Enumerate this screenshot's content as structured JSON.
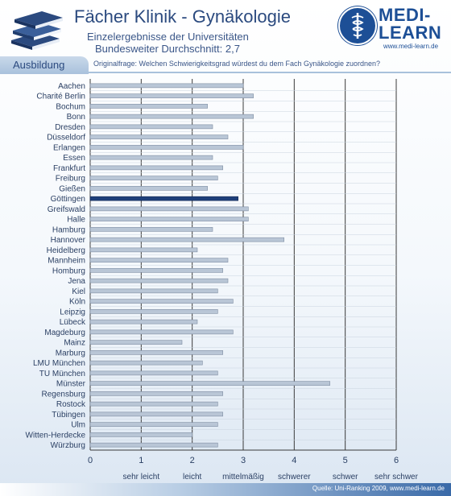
{
  "header": {
    "title": "Fächer Klinik - Gynäkologie",
    "subtitle": "Einzelergebnisse der Universitäten",
    "average": "Bundesweiter Durchschnitt: 2,7"
  },
  "logo": {
    "line1": "MEDI-",
    "line2": "LEARN",
    "url": "www.medi-learn.de",
    "icon": "caduceus-icon"
  },
  "tab": {
    "label": "Ausbildung"
  },
  "question": "Originalfrage: Welchen Schwierigkeitsgrad würdest du dem Fach Gynäkologie zuordnen?",
  "footer": {
    "source": "Quelle: Uni-Ranking 2009, www.medi-learn.de"
  },
  "colors": {
    "bar": "#b9c6d6",
    "highlight": "#1e3f7a",
    "grid": "#3a3a3a"
  },
  "chart_data": {
    "type": "bar",
    "orientation": "horizontal",
    "categories": [
      "Aachen",
      "Charité Berlin",
      "Bochum",
      "Bonn",
      "Dresden",
      "Düsseldorf",
      "Erlangen",
      "Essen",
      "Frankfurt",
      "Freiburg",
      "Gießen",
      "Göttingen",
      "Greifswald",
      "Halle",
      "Hamburg",
      "Hannover",
      "Heidelberg",
      "Mannheim",
      "Homburg",
      "Jena",
      "Kiel",
      "Köln",
      "Leipzig",
      "Lübeck",
      "Magdeburg",
      "Mainz",
      "Marburg",
      "LMU München",
      "TU München",
      "Münster",
      "Regensburg",
      "Rostock",
      "Tübingen",
      "Ulm",
      "Witten-Herdecke",
      "Würzburg"
    ],
    "values": [
      3.0,
      3.2,
      2.3,
      3.2,
      2.4,
      2.7,
      3.0,
      2.4,
      2.6,
      2.5,
      2.3,
      2.9,
      3.1,
      3.1,
      2.4,
      3.8,
      2.1,
      2.7,
      2.6,
      2.7,
      2.5,
      2.8,
      2.5,
      2.1,
      2.8,
      1.8,
      2.6,
      2.2,
      2.5,
      4.7,
      2.6,
      2.5,
      2.6,
      2.5,
      2.0,
      2.5
    ],
    "highlight": "Göttingen",
    "xlim": [
      0,
      6
    ],
    "xticks": [
      0,
      1,
      2,
      3,
      4,
      5,
      6
    ],
    "scale_labels": [
      "sehr leicht",
      "leicht",
      "mittelmäßig",
      "schwerer",
      "schwer",
      "sehr schwer"
    ],
    "grid": true
  }
}
